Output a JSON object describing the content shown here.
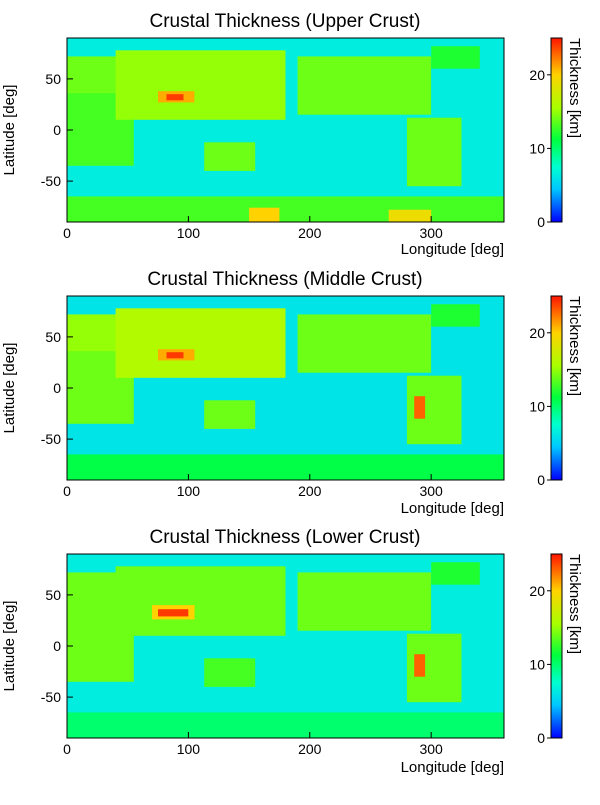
{
  "chart_data": [
    {
      "type": "heatmap",
      "title": "Crustal Thickness (Upper Crust)",
      "xlabel": "Longitude [deg]",
      "ylabel": "Latitude [deg]",
      "colorbar_label": "Thickness [km]",
      "xlim": [
        0,
        360
      ],
      "ylim": [
        -90,
        90
      ],
      "zlim": [
        0,
        25
      ],
      "xticks": [
        0,
        100,
        200,
        300
      ],
      "yticks": [
        -50,
        0,
        50
      ],
      "cticks": [
        0,
        10,
        20
      ],
      "regions": [
        {
          "lon": [
            0,
            360
          ],
          "lat": [
            -90,
            90
          ],
          "value": 6.5
        },
        {
          "lon": [
            0,
            360
          ],
          "lat": [
            -90,
            -65
          ],
          "value": 13
        },
        {
          "lon": [
            150,
            175
          ],
          "lat": [
            -90,
            -76
          ],
          "value": 20
        },
        {
          "lon": [
            265,
            300
          ],
          "lat": [
            -90,
            -78
          ],
          "value": 19
        },
        {
          "lon": [
            -20,
            55
          ],
          "lat": [
            -35,
            37
          ],
          "value": 13
        },
        {
          "lon": [
            -10,
            45
          ],
          "lat": [
            36,
            72
          ],
          "value": 14
        },
        {
          "lon": [
            40,
            180
          ],
          "lat": [
            10,
            78
          ],
          "value": 15
        },
        {
          "lon": [
            75,
            105
          ],
          "lat": [
            27,
            38
          ],
          "value": 21
        },
        {
          "lon": [
            82,
            96
          ],
          "lat": [
            29,
            35
          ],
          "value": 24
        },
        {
          "lon": [
            113,
            155
          ],
          "lat": [
            -40,
            -12
          ],
          "value": 14
        },
        {
          "lon": [
            190,
            300
          ],
          "lat": [
            15,
            72
          ],
          "value": 14
        },
        {
          "lon": [
            280,
            325
          ],
          "lat": [
            -55,
            12
          ],
          "value": 14
        },
        {
          "lon": [
            300,
            340
          ],
          "lat": [
            60,
            82
          ],
          "value": 12
        }
      ]
    },
    {
      "type": "heatmap",
      "title": "Crustal Thickness (Middle Crust)",
      "xlabel": "Longitude [deg]",
      "ylabel": "Latitude [deg]",
      "colorbar_label": "Thickness [km]",
      "xlim": [
        0,
        360
      ],
      "ylim": [
        -90,
        90
      ],
      "zlim": [
        0,
        25
      ],
      "xticks": [
        0,
        100,
        200,
        300
      ],
      "yticks": [
        -50,
        0,
        50
      ],
      "cticks": [
        0,
        10,
        20
      ],
      "regions": [
        {
          "lon": [
            0,
            360
          ],
          "lat": [
            -90,
            90
          ],
          "value": 6
        },
        {
          "lon": [
            0,
            360
          ],
          "lat": [
            -90,
            -65
          ],
          "value": 11
        },
        {
          "lon": [
            -20,
            55
          ],
          "lat": [
            -35,
            37
          ],
          "value": 14
        },
        {
          "lon": [
            -10,
            45
          ],
          "lat": [
            36,
            72
          ],
          "value": 15
        },
        {
          "lon": [
            40,
            180
          ],
          "lat": [
            10,
            78
          ],
          "value": 16
        },
        {
          "lon": [
            75,
            105
          ],
          "lat": [
            27,
            38
          ],
          "value": 21
        },
        {
          "lon": [
            82,
            96
          ],
          "lat": [
            29,
            35
          ],
          "value": 24
        },
        {
          "lon": [
            113,
            155
          ],
          "lat": [
            -40,
            -12
          ],
          "value": 14
        },
        {
          "lon": [
            190,
            300
          ],
          "lat": [
            15,
            72
          ],
          "value": 14
        },
        {
          "lon": [
            280,
            325
          ],
          "lat": [
            -55,
            12
          ],
          "value": 14
        },
        {
          "lon": [
            286,
            295
          ],
          "lat": [
            -30,
            -8
          ],
          "value": 23
        },
        {
          "lon": [
            300,
            340
          ],
          "lat": [
            60,
            82
          ],
          "value": 12
        }
      ]
    },
    {
      "type": "heatmap",
      "title": "Crustal Thickness (Lower Crust)",
      "xlabel": "Longitude [deg]",
      "ylabel": "Latitude [deg]",
      "colorbar_label": "Thickness [km]",
      "xlim": [
        0,
        360
      ],
      "ylim": [
        -90,
        90
      ],
      "zlim": [
        0,
        25
      ],
      "xticks": [
        0,
        100,
        200,
        300
      ],
      "yticks": [
        -50,
        0,
        50
      ],
      "cticks": [
        0,
        10,
        20
      ],
      "regions": [
        {
          "lon": [
            0,
            360
          ],
          "lat": [
            -90,
            90
          ],
          "value": 6.5
        },
        {
          "lon": [
            0,
            360
          ],
          "lat": [
            -90,
            -65
          ],
          "value": 10
        },
        {
          "lon": [
            -20,
            55
          ],
          "lat": [
            -35,
            37
          ],
          "value": 14
        },
        {
          "lon": [
            -10,
            45
          ],
          "lat": [
            36,
            72
          ],
          "value": 14
        },
        {
          "lon": [
            40,
            180
          ],
          "lat": [
            10,
            78
          ],
          "value": 14
        },
        {
          "lon": [
            70,
            105
          ],
          "lat": [
            26,
            40
          ],
          "value": 20
        },
        {
          "lon": [
            75,
            100
          ],
          "lat": [
            29,
            36
          ],
          "value": 24
        },
        {
          "lon": [
            113,
            155
          ],
          "lat": [
            -40,
            -12
          ],
          "value": 13
        },
        {
          "lon": [
            190,
            300
          ],
          "lat": [
            15,
            72
          ],
          "value": 14
        },
        {
          "lon": [
            280,
            325
          ],
          "lat": [
            -55,
            12
          ],
          "value": 14
        },
        {
          "lon": [
            286,
            295
          ],
          "lat": [
            -30,
            -8
          ],
          "value": 23
        },
        {
          "lon": [
            300,
            340
          ],
          "lat": [
            60,
            82
          ],
          "value": 12
        }
      ]
    }
  ]
}
